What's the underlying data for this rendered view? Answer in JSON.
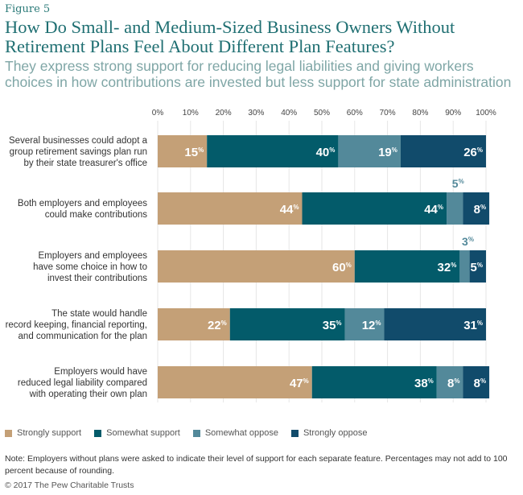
{
  "figure_label": "Figure 5",
  "chart_data": {
    "type": "bar",
    "stacked": true,
    "orientation": "horizontal",
    "title": "How Do Small- and Medium-Sized Business Owners Without Retirement Plans Feel About Different Plan Features?",
    "subtitle": "They express strong support for reducing legal liabilities and giving workers choices in how contributions are invested but less support for state administration",
    "categories": [
      "Several businesses could adopt a group retirement savings plan run by their state treasurer's office",
      "Both employers and employees could make contributions",
      "Employers and employees have some choice in how to invest their contributions",
      "The state would handle record keeping, financial reporting, and communication for the plan",
      "Employers would have reduced legal liability compared with operating their own plan"
    ],
    "category_lines": [
      [
        "Several businesses could adopt a",
        "group retirement savings plan run",
        "by their state treasurer's office"
      ],
      [
        "Both employers and employees",
        "could make contributions"
      ],
      [
        "Employers and employees",
        "have some choice in how to",
        "invest their contributions"
      ],
      [
        "The state would handle",
        "record keeping, financial reporting,",
        "and communication for the plan"
      ],
      [
        "Employers would have",
        "reduced legal liability compared",
        "with operating their own plan"
      ]
    ],
    "series": [
      {
        "name": "Strongly support",
        "color": "#c4a077",
        "values": [
          15,
          44,
          60,
          22,
          47
        ]
      },
      {
        "name": "Somewhat support",
        "color": "#035b6a",
        "values": [
          40,
          44,
          32,
          35,
          38
        ]
      },
      {
        "name": "Somewhat oppose",
        "color": "#53899a",
        "values": [
          19,
          5,
          3,
          12,
          8
        ]
      },
      {
        "name": "Strongly oppose",
        "color": "#114b6b",
        "values": [
          26,
          8,
          5,
          31,
          8
        ]
      }
    ],
    "xlim": [
      0,
      100
    ],
    "x_ticks": [
      "0%",
      "10%",
      "20%",
      "30%",
      "40%",
      "50%",
      "60%",
      "70%",
      "80%",
      "90%",
      "100%"
    ],
    "grid": true,
    "legend": "bottom-left",
    "unit": "%"
  },
  "note": "Note: Employers without plans were asked to indicate their level of support for each separate feature. Percentages may not add to 100 percent because of rounding.",
  "copyright": "© 2017 The Pew Charitable Trusts"
}
